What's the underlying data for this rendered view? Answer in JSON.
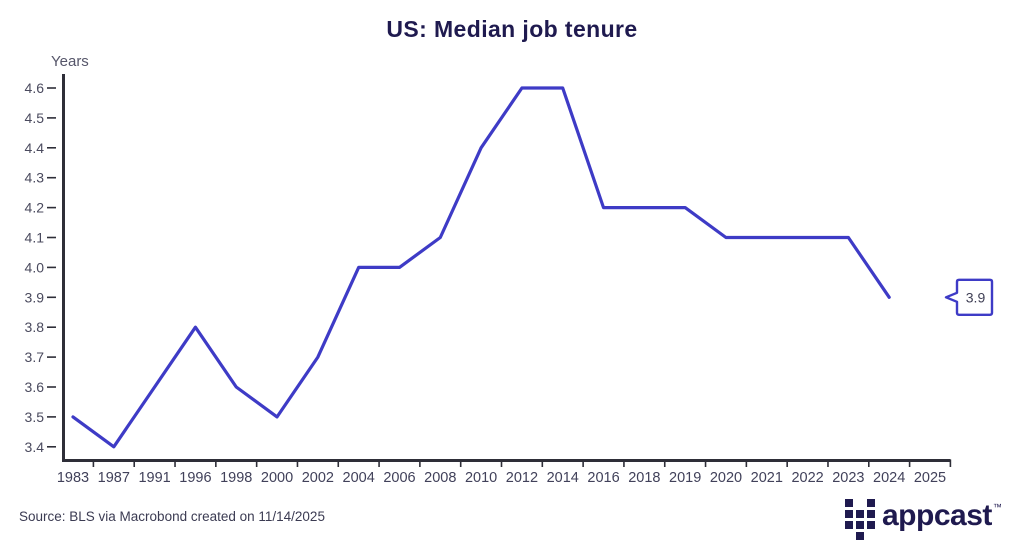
{
  "title": "US: Median job tenure",
  "source_note": "Source: BLS via Macrobond created on 11/14/2025",
  "branding": {
    "wordmark": "appcast",
    "trademark": "™",
    "logo_icon": "appcast-pixel-grid"
  },
  "colors": {
    "line": "#3e3bc6",
    "navy": "#1f1a4f",
    "axis": "#2e2e38",
    "y_tick_label": "#4a4a5e",
    "x_tick_label": "#41415a",
    "callout_text": "#3f3f55"
  },
  "chart_data": {
    "type": "line",
    "title": "US: Median job tenure",
    "xlabel": "",
    "ylabel": "Years",
    "categories": [
      "1983",
      "1987",
      "1991",
      "1996",
      "1998",
      "2000",
      "2002",
      "2004",
      "2006",
      "2008",
      "2010",
      "2012",
      "2014",
      "2016",
      "2018",
      "2019",
      "2020",
      "2021",
      "2022",
      "2023",
      "2024",
      "2025"
    ],
    "values": [
      3.5,
      3.4,
      3.6,
      3.8,
      3.6,
      3.5,
      3.7,
      4.0,
      4.0,
      4.1,
      4.4,
      4.6,
      4.6,
      4.2,
      4.2,
      4.2,
      4.1,
      4.1,
      4.1,
      4.1,
      3.9,
      null
    ],
    "y_ticks": [
      3.4,
      3.5,
      3.6,
      3.7,
      3.8,
      3.9,
      4.0,
      4.1,
      4.2,
      4.3,
      4.4,
      4.5,
      4.6
    ],
    "ylim": [
      3.35,
      4.65
    ],
    "grid": false,
    "legend": "none",
    "line_color": "#3e3bc6",
    "end_label": "3.9"
  }
}
